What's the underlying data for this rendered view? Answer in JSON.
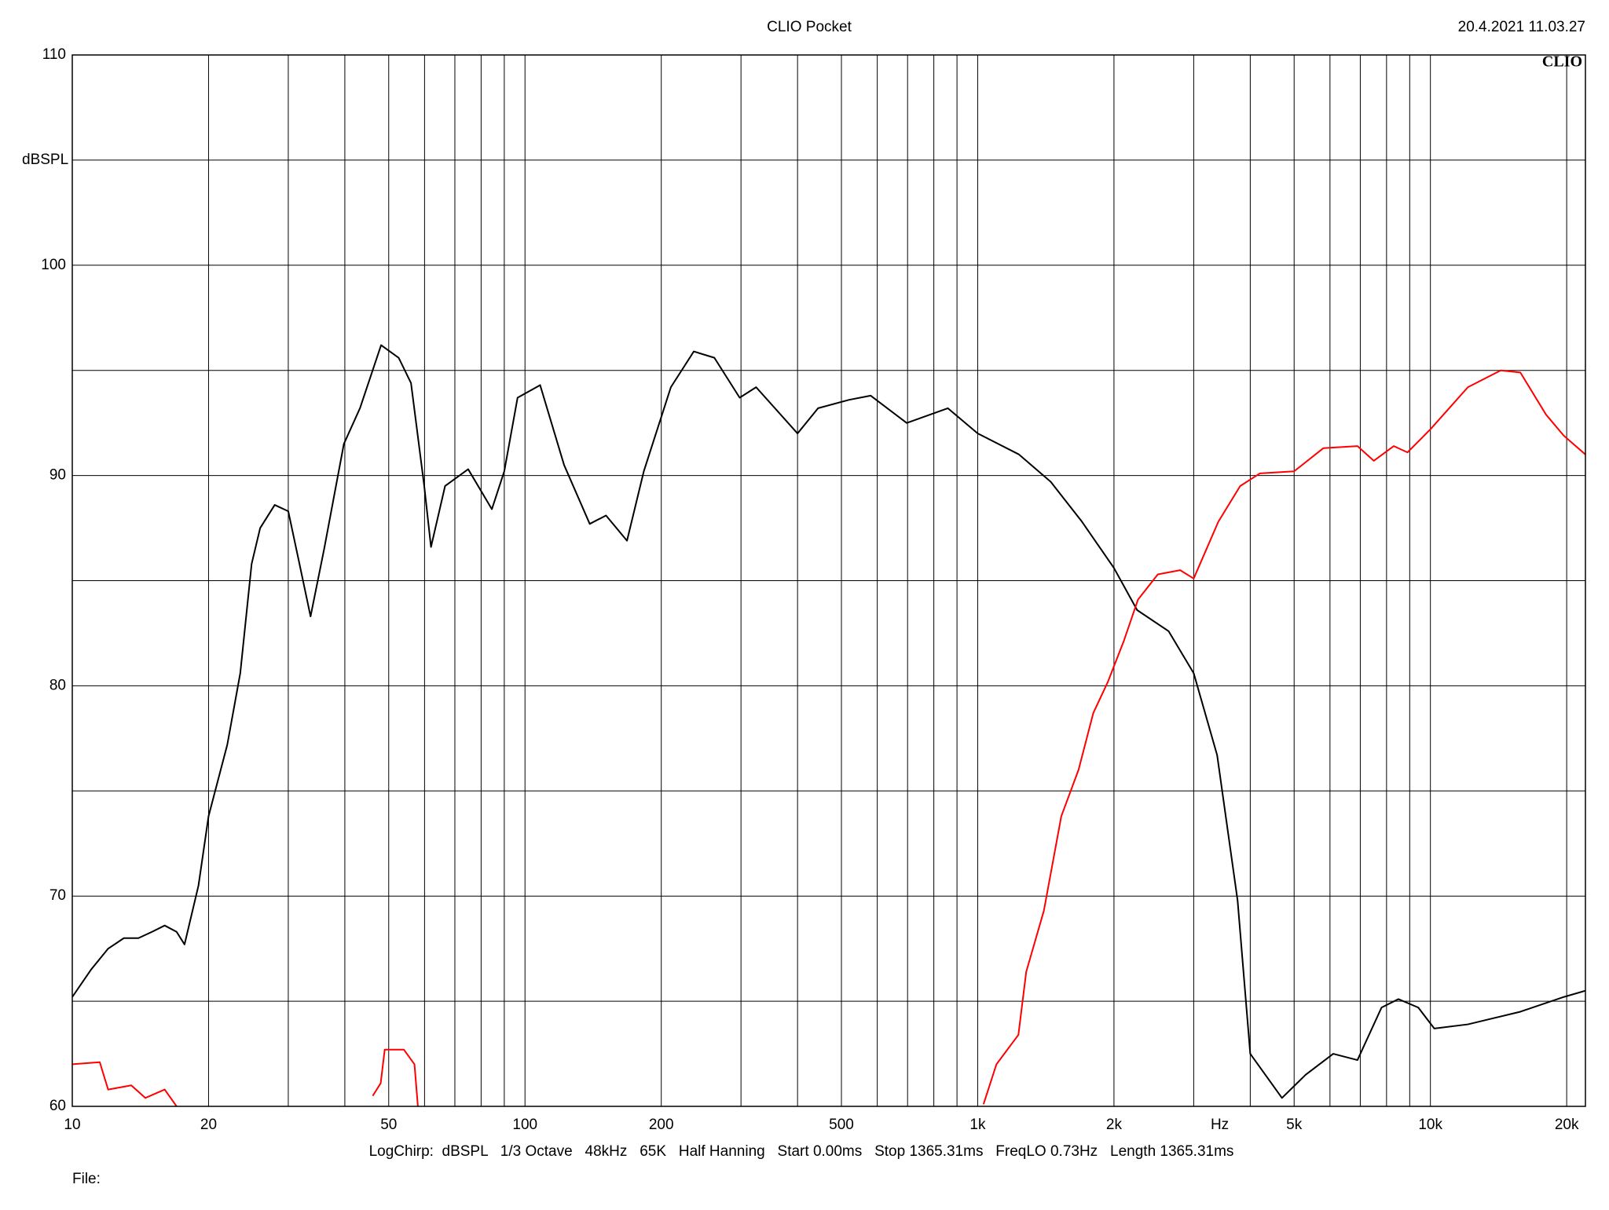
{
  "chart_data": {
    "type": "line",
    "title": "CLIO Pocket",
    "timestamp": "20.4.2021 11.03.27",
    "logo": "CLIO",
    "ylabel": "dBSPL",
    "xlabel": "Hz",
    "footer": "LogChirp:  dBSPL   1/3 Octave   48kHz   65K   Half Hanning   Start 0.00ms   Stop 1365.31ms   FreqLO 0.73Hz   Length 1365.31ms",
    "file_label": "File:",
    "xscale": "log",
    "xlim": [
      10,
      22000
    ],
    "ylim": [
      60,
      110
    ],
    "xticks": [
      10,
      20,
      50,
      100,
      200,
      500,
      {
        "value": 1000,
        "label": "1k"
      },
      {
        "value": 2000,
        "label": "2k"
      },
      {
        "value": 5000,
        "label": "5k"
      },
      {
        "value": 10000,
        "label": "10k"
      },
      {
        "value": 20000,
        "label": "20k"
      }
    ],
    "x_minor_grid": [
      30,
      40,
      60,
      70,
      80,
      90,
      300,
      400,
      600,
      700,
      800,
      900,
      3000,
      4000,
      6000,
      7000,
      8000,
      9000
    ],
    "yticks": [
      60,
      70,
      80,
      90,
      100,
      110
    ],
    "y_minor_grid": [
      65,
      75,
      85,
      95,
      105
    ],
    "grid": true,
    "series": [
      {
        "color": "#000000",
        "x": [
          10,
          11,
          12,
          13,
          14,
          15,
          16,
          17,
          17.7,
          19,
          20,
          22,
          23.5,
          24.9,
          26,
          28,
          30,
          31.9,
          33.6,
          36,
          39.8,
          43.2,
          48.1,
          52.6,
          56,
          59.9,
          62,
          66.6,
          74.9,
          84.5,
          90,
          96.3,
          108,
          122,
          139,
          151,
          168,
          183,
          210,
          236,
          262,
          298,
          324,
          400,
          444,
          520,
          580,
          697,
          859,
          1000,
          1234,
          1450,
          1700,
          2000,
          2250,
          2640,
          3000,
          3380,
          3750,
          4000,
          4700,
          5300,
          6100,
          6900,
          7800,
          8500,
          9400,
          10200,
          12100,
          15800,
          19700,
          22000
        ],
        "values": [
          65.2,
          66.5,
          67.5,
          68.0,
          68.0,
          68.3,
          68.6,
          68.3,
          67.7,
          70.5,
          73.8,
          77.2,
          80.6,
          85.8,
          87.5,
          88.6,
          88.3,
          85.6,
          83.3,
          86.5,
          91.5,
          93.2,
          96.2,
          95.6,
          94.4,
          89.5,
          86.6,
          89.5,
          90.3,
          88.4,
          90.2,
          93.7,
          94.3,
          90.5,
          87.7,
          88.1,
          86.9,
          90.2,
          94.2,
          95.9,
          95.6,
          93.7,
          94.2,
          92.0,
          93.2,
          93.6,
          93.8,
          92.5,
          93.2,
          92.0,
          91.0,
          89.7,
          87.8,
          85.6,
          83.6,
          82.6,
          80.6,
          76.7,
          69.8,
          62.5,
          60.4,
          61.5,
          62.5,
          62.2,
          64.7,
          65.1,
          64.7,
          63.7,
          63.9,
          64.5,
          65.2,
          65.5
        ]
      },
      {
        "color": "#ff0000",
        "x": [
          10,
          11.5,
          12,
          13.5,
          14.5,
          16,
          17,
          30,
          46.1,
          48,
          49,
          54,
          57,
          58,
          300,
          1030,
          1100,
          1230,
          1280,
          1400,
          1530,
          1670,
          1800,
          1940,
          2100,
          2260,
          2500,
          2800,
          3000,
          3400,
          3800,
          4200,
          5000,
          5800,
          6900,
          7500,
          8300,
          8900,
          10000,
          11000,
          12100,
          14300,
          15800,
          18000,
          19700,
          22000
        ],
        "values": [
          62.0,
          62.1,
          60.8,
          61.0,
          60.4,
          60.8,
          60.0,
          null,
          60.5,
          61.1,
          62.7,
          62.7,
          62.0,
          60.0,
          null,
          60.1,
          62.0,
          63.4,
          66.4,
          69.3,
          73.8,
          76.0,
          78.7,
          80.2,
          82.1,
          84.1,
          85.3,
          85.5,
          85.1,
          87.8,
          89.5,
          90.1,
          90.2,
          91.3,
          91.4,
          90.7,
          91.4,
          91.1,
          92.2,
          93.2,
          94.2,
          95.0,
          94.9,
          92.9,
          91.9,
          91.0
        ]
      }
    ]
  }
}
